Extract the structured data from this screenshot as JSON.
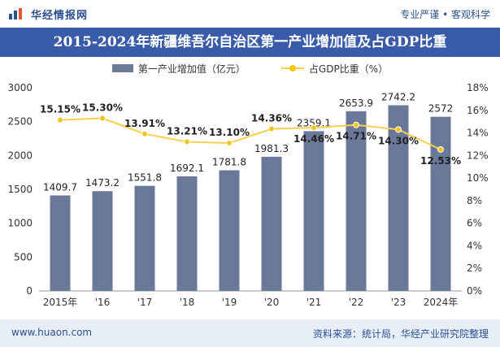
{
  "header": {
    "brand_name": "华经情报网",
    "tagline": "专业严谨 • 客观科学"
  },
  "title": "2015-2024年新疆维吾尔自治区第一产业增加值及占GDP比重",
  "legend": {
    "bar_label": "第一产业增加值（亿元）",
    "line_label": "占GDP比重（%）"
  },
  "footer": {
    "url": "www.huaon.com",
    "source": "资料来源：统计局，华经产业研究院整理"
  },
  "colors": {
    "title_bg": "#3a5ca8",
    "bar": "#6a7899",
    "line": "#f5d04a",
    "marker": "#f5c518",
    "brand": "#2b4f8f"
  },
  "chart_data": {
    "type": "bar+line",
    "categories": [
      "2015年",
      "'16",
      "'17",
      "'18",
      "'19",
      "'20",
      "'21",
      "'22",
      "'23",
      "2024年"
    ],
    "series": [
      {
        "name": "第一产业增加值（亿元）",
        "type": "bar",
        "axis": "left",
        "values": [
          1409.7,
          1473.2,
          1551.8,
          1692.1,
          1781.8,
          1981.3,
          2359.1,
          2653.9,
          2742.2,
          2572
        ],
        "labels": [
          "1409.7",
          "1473.2",
          "1551.8",
          "1692.1",
          "1781.8",
          "1981.3",
          "2359.1",
          "2653.9",
          "2742.2",
          "2572"
        ]
      },
      {
        "name": "占GDP比重（%）",
        "type": "line",
        "axis": "right",
        "values": [
          15.15,
          15.3,
          13.91,
          13.21,
          13.1,
          14.36,
          14.46,
          14.71,
          14.3,
          12.53
        ],
        "labels": [
          "15.15%",
          "15.30%",
          "13.91%",
          "13.21%",
          "13.10%",
          "14.36%",
          "14.46%",
          "14.71%",
          "14.30%",
          "12.53%"
        ]
      }
    ],
    "y_left": {
      "min": 0,
      "max": 3000,
      "ticks": [
        "0",
        "500",
        "1000",
        "1500",
        "2000",
        "2500",
        "3000"
      ]
    },
    "y_right": {
      "min": 0,
      "max": 18,
      "ticks": [
        "0%",
        "2%",
        "4%",
        "6%",
        "8%",
        "10%",
        "12%",
        "14%",
        "16%",
        "18%"
      ]
    }
  }
}
